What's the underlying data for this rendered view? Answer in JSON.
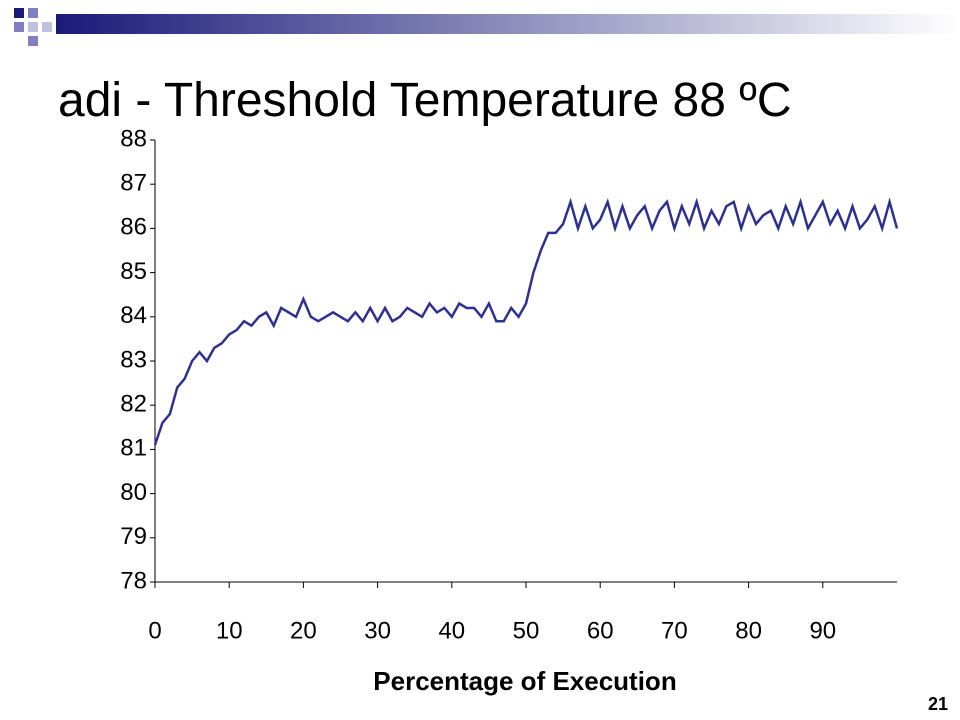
{
  "chart_data": {
    "type": "line",
    "title": "adi - Threshold Temperature 88 ºC",
    "x_label": "Percentage of Execution",
    "page_number": "21",
    "x": [
      0,
      1,
      2,
      3,
      4,
      5,
      6,
      7,
      8,
      9,
      10,
      11,
      12,
      13,
      14,
      15,
      16,
      17,
      18,
      19,
      20,
      21,
      22,
      23,
      24,
      25,
      26,
      27,
      28,
      29,
      30,
      31,
      32,
      33,
      34,
      35,
      36,
      37,
      38,
      39,
      40,
      41,
      42,
      43,
      44,
      45,
      46,
      47,
      48,
      49,
      50,
      51,
      52,
      53,
      54,
      55,
      56,
      57,
      58,
      59,
      60,
      61,
      62,
      63,
      64,
      65,
      66,
      67,
      68,
      69,
      70,
      71,
      72,
      73,
      74,
      75,
      76,
      77,
      78,
      79,
      80,
      81,
      82,
      83,
      84,
      85,
      86,
      87,
      88,
      89,
      90,
      91,
      92,
      93,
      94,
      95,
      96,
      97,
      98,
      99,
      100
    ],
    "values": [
      81.1,
      81.6,
      81.8,
      82.4,
      82.6,
      83.0,
      83.2,
      83.0,
      83.3,
      83.4,
      83.6,
      83.7,
      83.9,
      83.8,
      84.0,
      84.1,
      83.8,
      84.2,
      84.1,
      84.0,
      84.4,
      84.0,
      83.9,
      84.0,
      84.1,
      84.0,
      83.9,
      84.1,
      83.9,
      84.2,
      83.9,
      84.2,
      83.9,
      84.0,
      84.2,
      84.1,
      84.0,
      84.3,
      84.1,
      84.2,
      84.0,
      84.3,
      84.2,
      84.2,
      84.0,
      84.3,
      83.9,
      83.9,
      84.2,
      84.0,
      84.3,
      85.0,
      85.5,
      85.9,
      85.9,
      86.1,
      86.6,
      86.0,
      86.5,
      86.0,
      86.2,
      86.6,
      86.0,
      86.5,
      86.0,
      86.3,
      86.5,
      86.0,
      86.4,
      86.6,
      86.0,
      86.5,
      86.1,
      86.6,
      86.0,
      86.4,
      86.1,
      86.5,
      86.6,
      86.0,
      86.5,
      86.1,
      86.3,
      86.4,
      86.0,
      86.5,
      86.1,
      86.6,
      86.0,
      86.3,
      86.6,
      86.1,
      86.4,
      86.0,
      86.5,
      86.0,
      86.2,
      86.5,
      86.0,
      86.6,
      86.0
    ],
    "color": "#2e3192",
    "xlim": [
      0,
      100
    ],
    "xticks": [
      0,
      10,
      20,
      30,
      40,
      50,
      60,
      70,
      80,
      90
    ],
    "ylim": [
      78,
      88
    ],
    "yticks": [
      78,
      79,
      80,
      81,
      82,
      83,
      84,
      85,
      86,
      87,
      88
    ]
  }
}
